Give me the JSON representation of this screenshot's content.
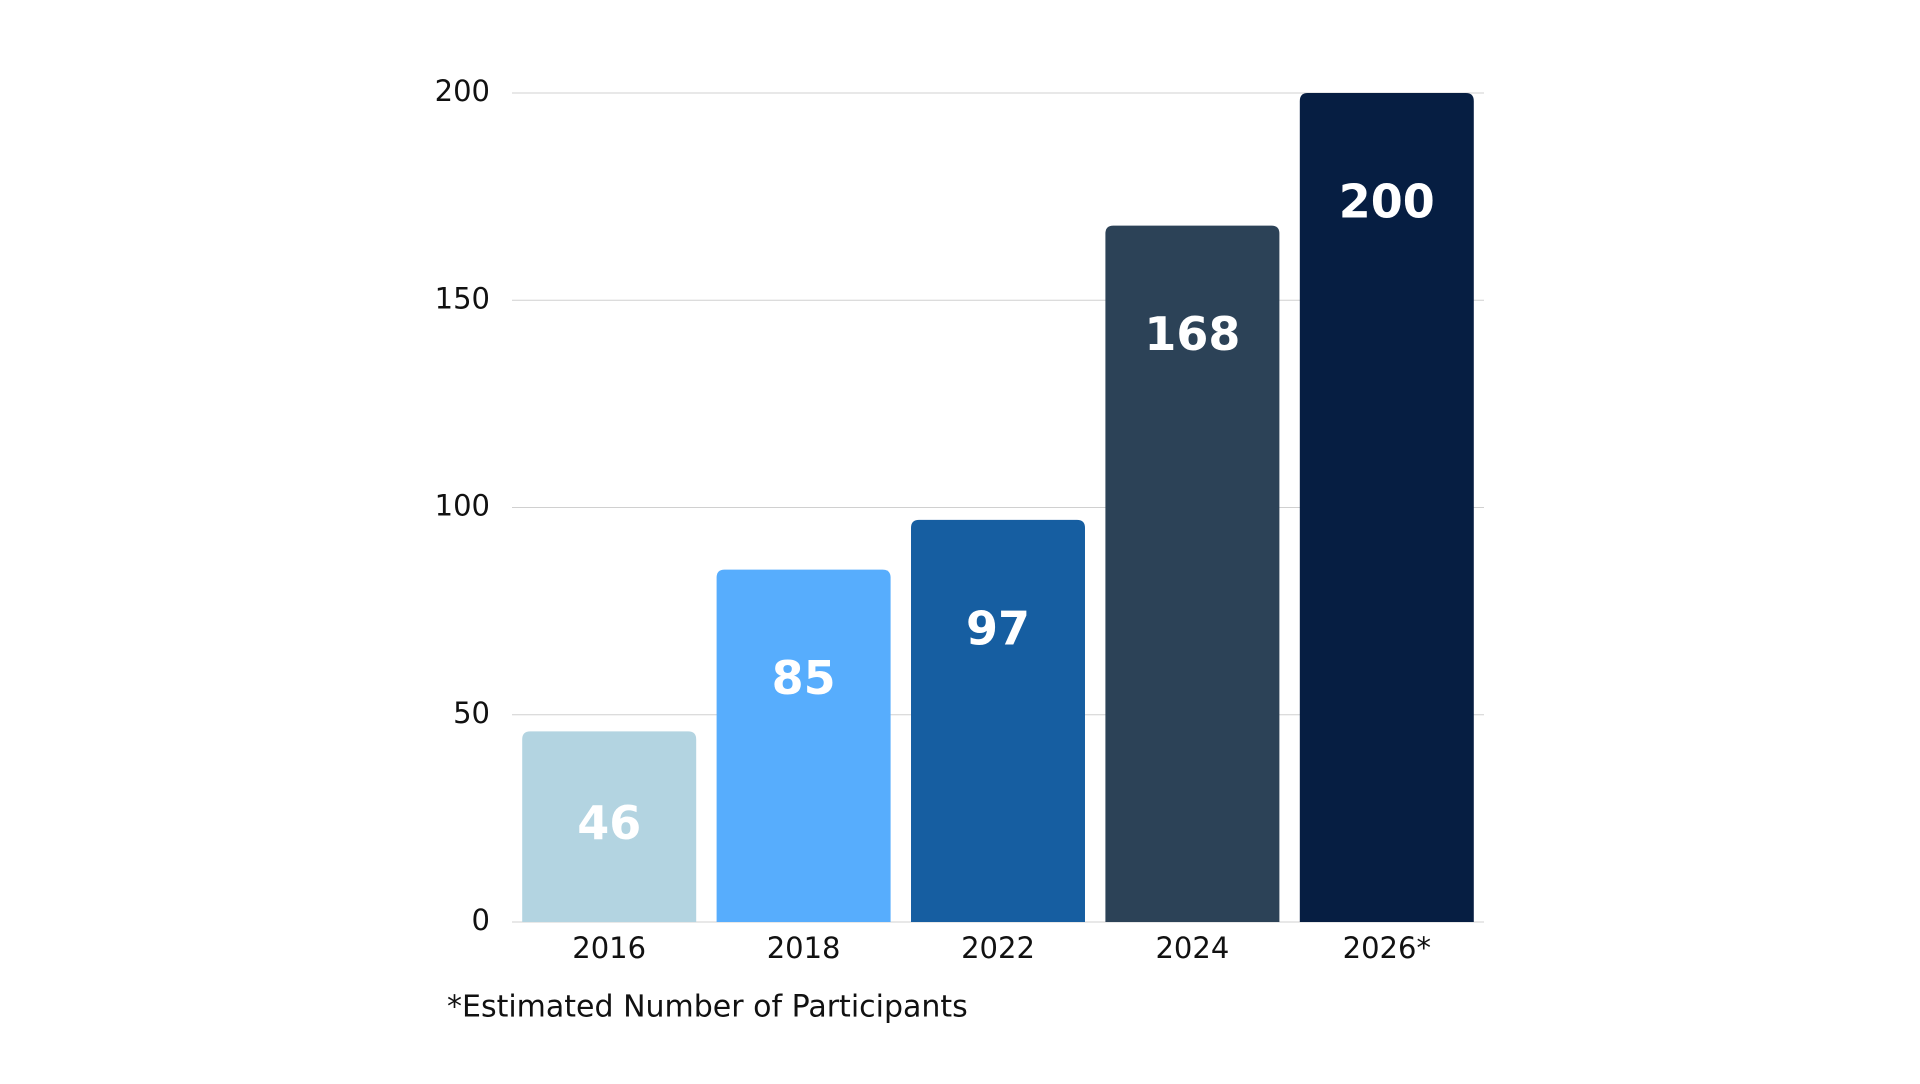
{
  "chart_data": {
    "type": "bar",
    "categories": [
      "2016",
      "2018",
      "2022",
      "2024",
      "2026*"
    ],
    "values": [
      46,
      85,
      97,
      168,
      200
    ],
    "colors": [
      "#b3d4e1",
      "#57adfd",
      "#165ea1",
      "#2c4257",
      "#061e42"
    ],
    "ylim": [
      0,
      200
    ],
    "yticks": [
      0,
      50,
      100,
      150,
      200
    ],
    "grid": true,
    "annotations": [
      "*Estimated Number of Participants"
    ]
  }
}
